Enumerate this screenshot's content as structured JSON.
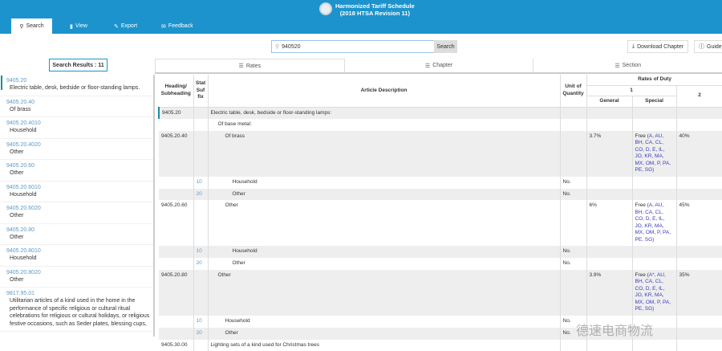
{
  "header": {
    "title_line1": "Harmonized Tariff Schedule",
    "title_line2": "(2018 HTSA Revision 11)",
    "color": "#1c93cc"
  },
  "nav": [
    {
      "label": "Search",
      "icon": "search-icon"
    },
    {
      "label": "View",
      "icon": "document-icon"
    },
    {
      "label": "Export",
      "icon": "export-icon"
    },
    {
      "label": "Feedback",
      "icon": "feedback-icon"
    }
  ],
  "search": {
    "value": "940520",
    "button": "Search"
  },
  "toolbar": {
    "download": "Download Chapter",
    "guide": "Guide"
  },
  "results_label": "Search Results : 11",
  "view_tabs": [
    "Rates",
    "Chapter",
    "Section"
  ],
  "results": [
    {
      "code": "9405.20",
      "desc": "Electric table, desk, bedside or floor-standing lamps."
    },
    {
      "code": "9405.20.40",
      "desc": "Of brass"
    },
    {
      "code": "9405.20.4010",
      "desc": "Household"
    },
    {
      "code": "9405.20.4020",
      "desc": "Other"
    },
    {
      "code": "9405.20.60",
      "desc": "Other"
    },
    {
      "code": "9405.20.6010",
      "desc": "Household"
    },
    {
      "code": "9405.20.6020",
      "desc": "Other"
    },
    {
      "code": "9405.20.80",
      "desc": "Other"
    },
    {
      "code": "9405.20.8010",
      "desc": "Household"
    },
    {
      "code": "9405.20.8020",
      "desc": "Other"
    },
    {
      "code": "9817.95.01",
      "desc": "Utilitarian articles of a kind used in the home in the performance of specific religious or cultural ritual celebrations for religious or cultural holidays, or religious festive occasions, such as Seder plates, blessing cups,"
    }
  ],
  "table": {
    "headers": {
      "heading": "Heading/ Subheading",
      "stat": "Stat Suf fix",
      "desc": "Article Description",
      "unit": "Unit of Quantity",
      "rates": "Rates of Duty",
      "col1": "1",
      "general": "General",
      "special": "Special",
      "col2": "2"
    },
    "rows": [
      {
        "heading": "9405.20",
        "stat": "",
        "desc": "Electric table, desk, bedside or floor-standing lamps:",
        "indent": 0,
        "unit": "",
        "general": "",
        "special_prefix": "",
        "special": "",
        "col2": ""
      },
      {
        "heading": "",
        "stat": "",
        "desc": "Of base metal:",
        "indent": 1,
        "unit": "",
        "general": "",
        "special_prefix": "",
        "special": "",
        "col2": ""
      },
      {
        "heading": "9405.20.40",
        "stat": "",
        "desc": "Of brass",
        "indent": 2,
        "unit": "",
        "general": "3.7%",
        "special_prefix": "Free (",
        "special": "A, AU, BH, CA, CL, CO, D, E, IL, JO, KR, MA, MX, OM, P, PA, PE, SG)",
        "col2": "40%"
      },
      {
        "heading": "",
        "stat": "10",
        "desc": "Household",
        "indent": 3,
        "unit": "No.",
        "general": "",
        "special_prefix": "",
        "special": "",
        "col2": ""
      },
      {
        "heading": "",
        "stat": "20",
        "desc": "Other",
        "indent": 3,
        "unit": "No.",
        "general": "",
        "special_prefix": "",
        "special": "",
        "col2": ""
      },
      {
        "heading": "9405.20.60",
        "stat": "",
        "desc": "Other",
        "indent": 2,
        "unit": "",
        "general": "6%",
        "special_prefix": "Free (",
        "special": "A, AU, BH, CA, CL, CO, D, E, IL, JO, KR, MA, MX, OM, P, PA, PE, SG)",
        "col2": "45%"
      },
      {
        "heading": "",
        "stat": "10",
        "desc": "Household",
        "indent": 3,
        "unit": "No.",
        "general": "",
        "special_prefix": "",
        "special": "",
        "col2": ""
      },
      {
        "heading": "",
        "stat": "20",
        "desc": "Other",
        "indent": 3,
        "unit": "No.",
        "general": "",
        "special_prefix": "",
        "special": "",
        "col2": ""
      },
      {
        "heading": "9405.20.80",
        "stat": "",
        "desc": "Other",
        "indent": 1,
        "unit": "",
        "general": "3.9%",
        "special_prefix": "Free (",
        "special": "A*, AU, BH, CA, CL, CO, D, E, IL, JO, KR, MA, MX, OM, P, PA, PE, SG)",
        "col2": "35%"
      },
      {
        "heading": "",
        "stat": "10",
        "desc": "Household",
        "indent": 2,
        "unit": "No.",
        "general": "",
        "special_prefix": "",
        "special": "",
        "col2": ""
      },
      {
        "heading": "",
        "stat": "20",
        "desc": "Other",
        "indent": 2,
        "unit": "No.",
        "general": "",
        "special_prefix": "",
        "special": "",
        "col2": ""
      },
      {
        "heading": "9405.30.00",
        "stat": "",
        "desc": "Lighting sets of a kind used for Christmas trees",
        "indent": 0,
        "unit": "",
        "general": "",
        "special_prefix": "",
        "special": "",
        "col2": ""
      }
    ]
  },
  "watermark": "德速电商物流"
}
